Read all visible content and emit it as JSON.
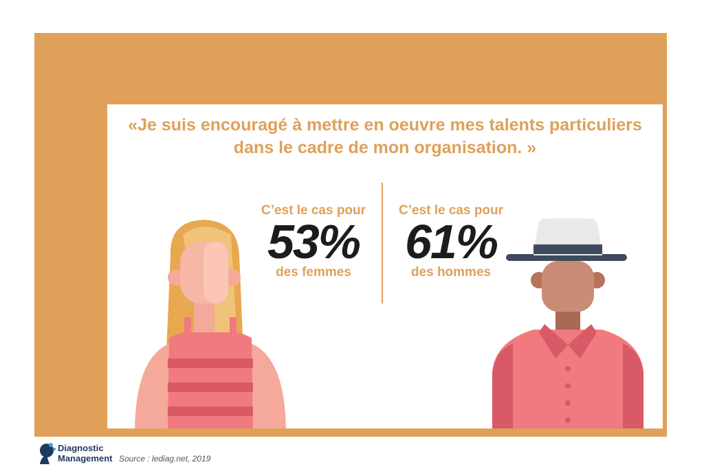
{
  "quote": {
    "line1": "«Je suis encouragé à mettre en oeuvre mes talents particuliers",
    "line2": "dans le cadre de mon organisation. »"
  },
  "women": {
    "lead": "C’est le cas pour",
    "percent": "53%",
    "tail": "des femmes"
  },
  "men": {
    "lead": "C’est le cas pour",
    "percent": "61%",
    "tail": "des hommes"
  },
  "footer": {
    "brand_line1": "Diagnostic",
    "brand_line2": "Management",
    "source": "Source : lediag.net, 2019"
  },
  "colors": {
    "accent": "#dfa05a",
    "figure_pink": "#f07a80",
    "figure_dark_pink": "#d85a66",
    "text_dark": "#1c1c1c",
    "brand": "#1e3a5f"
  },
  "icons": [
    "woman-illustration",
    "man-illustration",
    "brand-logo-icon"
  ]
}
